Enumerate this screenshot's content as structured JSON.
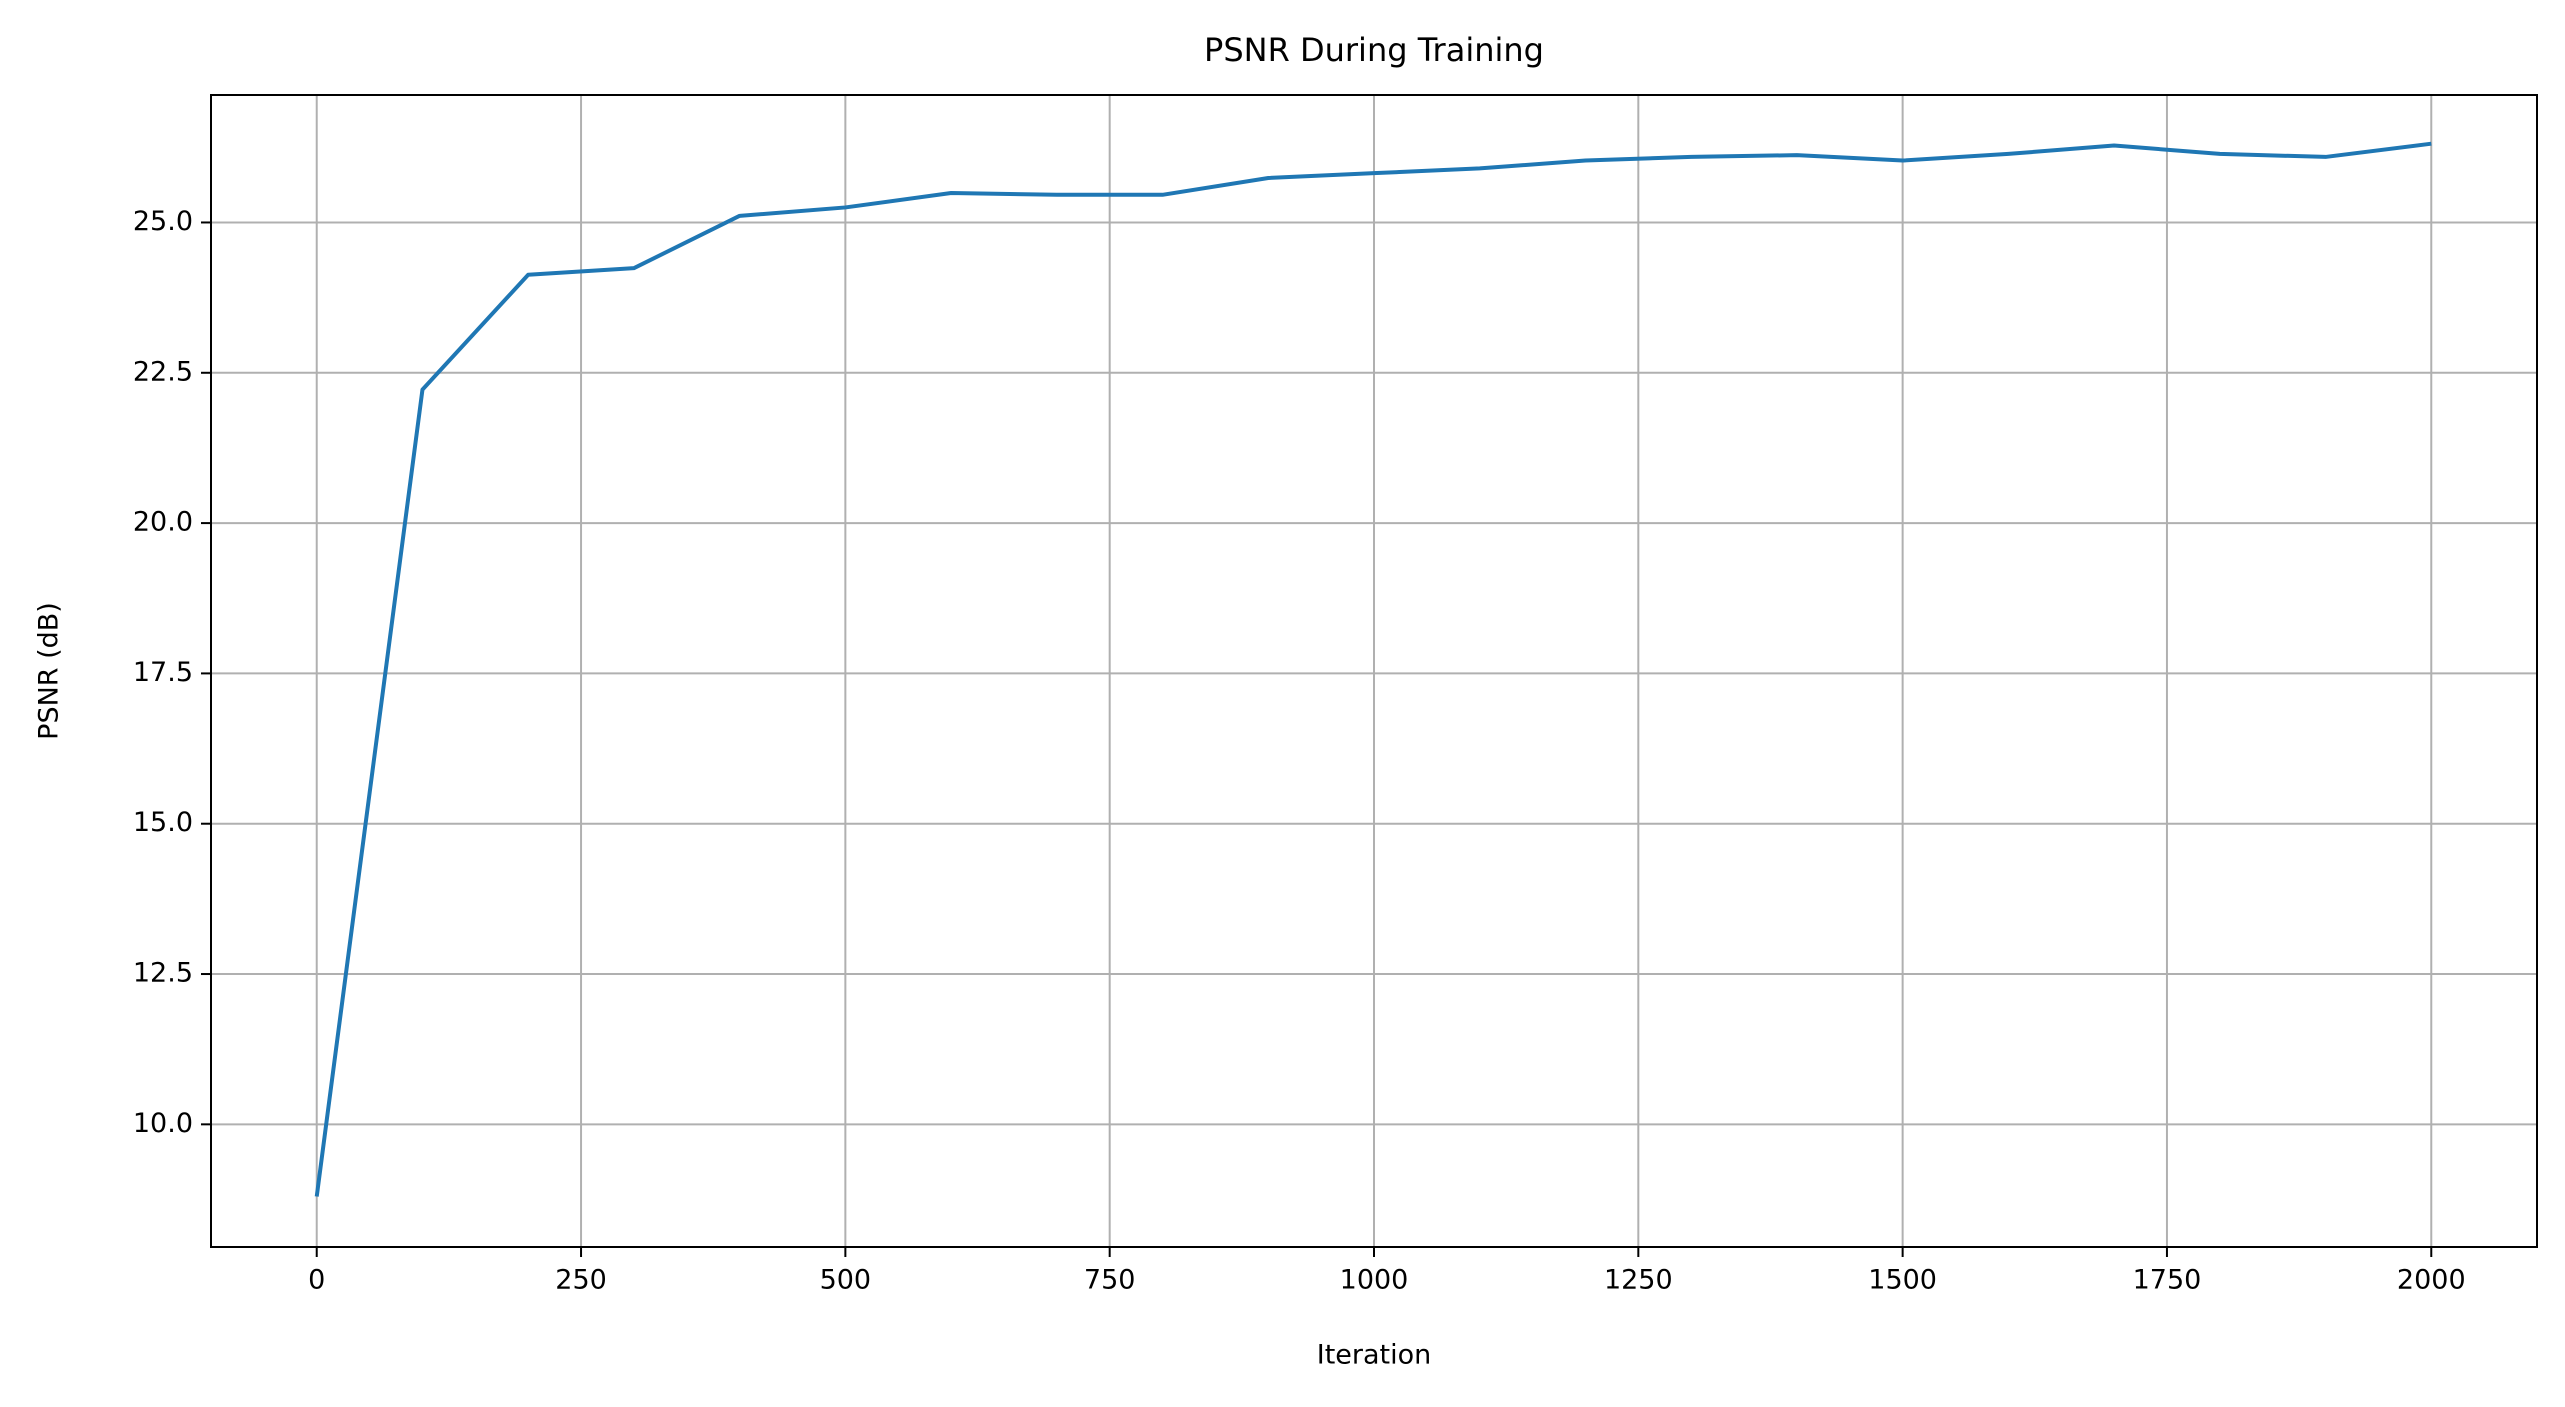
{
  "chart_data": {
    "type": "line",
    "title": "PSNR During Training",
    "x_label": "Iteration",
    "y_label": "PSNR (dB)",
    "x": [
      0,
      100,
      200,
      300,
      400,
      500,
      600,
      700,
      800,
      900,
      1000,
      1100,
      1200,
      1300,
      1400,
      1500,
      1600,
      1700,
      1800,
      1900,
      2000
    ],
    "series": [
      {
        "name": "PSNR",
        "color": "#1f77b4",
        "values": [
          8.8,
          22.22,
          24.13,
          24.24,
          25.11,
          25.25,
          25.49,
          25.46,
          25.46,
          25.74,
          25.82,
          25.9,
          26.03,
          26.09,
          26.12,
          26.03,
          26.14,
          26.28,
          26.14,
          26.09,
          26.31
        ]
      }
    ],
    "xlim": [
      -100,
      2100
    ],
    "ylim": [
      7.96,
      27.12
    ],
    "xticks": [
      0,
      250,
      500,
      750,
      1000,
      1250,
      1500,
      1750,
      2000
    ],
    "yticks": [
      {
        "value": 10,
        "label": "10.0"
      },
      {
        "value": 12.5,
        "label": "12.5"
      },
      {
        "value": 15,
        "label": "15.0"
      },
      {
        "value": 17.5,
        "label": "17.5"
      },
      {
        "value": 20,
        "label": "20.0"
      },
      {
        "value": 22.5,
        "label": "22.5"
      },
      {
        "value": 25,
        "label": "25.0"
      }
    ],
    "grid": true
  }
}
